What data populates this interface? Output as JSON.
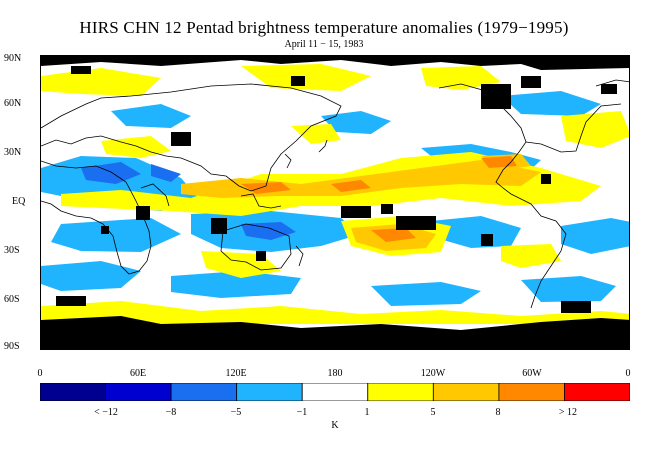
{
  "title": "HIRS CHN 12 Pentad brightness temperature anomalies (1979−1995)",
  "subtitle": "April 11 − 15, 1983",
  "y_ticks": [
    "90N",
    "60N",
    "30N",
    "EQ",
    "30S",
    "60S",
    "90S"
  ],
  "x_ticks": [
    "0",
    "60E",
    "120E",
    "180",
    "120W",
    "60W",
    "0"
  ],
  "colorbar": {
    "unit": "K",
    "labels": [
      "< −12",
      "−8",
      "−5",
      "−1",
      "1",
      "5",
      "8",
      "> 12"
    ],
    "colors": [
      "#000090",
      "#0000d0",
      "#1a6ef0",
      "#20b4ff",
      "#ffffff",
      "#ffff00",
      "#ffc800",
      "#ff8800",
      "#ff0000"
    ]
  },
  "colors": {
    "missing_data": "#000000",
    "continent_outline": "#000000"
  }
}
